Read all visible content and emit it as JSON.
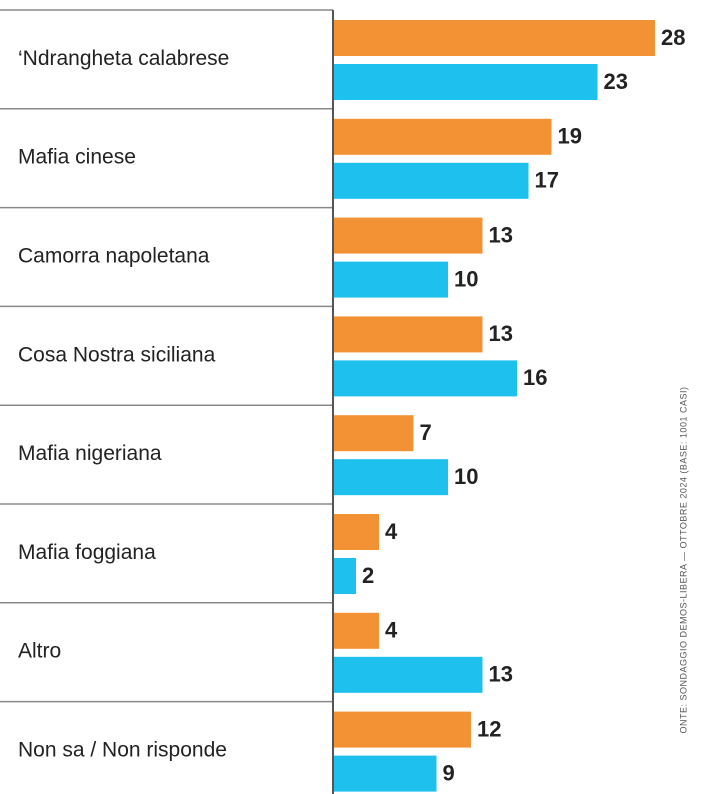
{
  "chart_data": {
    "type": "bar",
    "orientation": "horizontal",
    "categories": [
      "‘Ndrangheta calabrese",
      "Mafia cinese",
      "Camorra napoletana",
      "Cosa Nostra siciliana",
      "Mafia nigeriana",
      "Mafia foggiana",
      "Altro",
      "Non sa / Non risponde"
    ],
    "series": [
      {
        "color": "#f39234",
        "values": [
          28,
          19,
          13,
          13,
          7,
          4,
          4,
          12
        ]
      },
      {
        "color": "#1ec0ee",
        "values": [
          23,
          17,
          10,
          16,
          10,
          2,
          13,
          9
        ]
      }
    ],
    "xlim": [
      0,
      28
    ],
    "source": "ONTE: SONDAGGIO DEMOS-LIBERA — OTTOBRE 2024 (BASE: 1001 CASI)"
  }
}
